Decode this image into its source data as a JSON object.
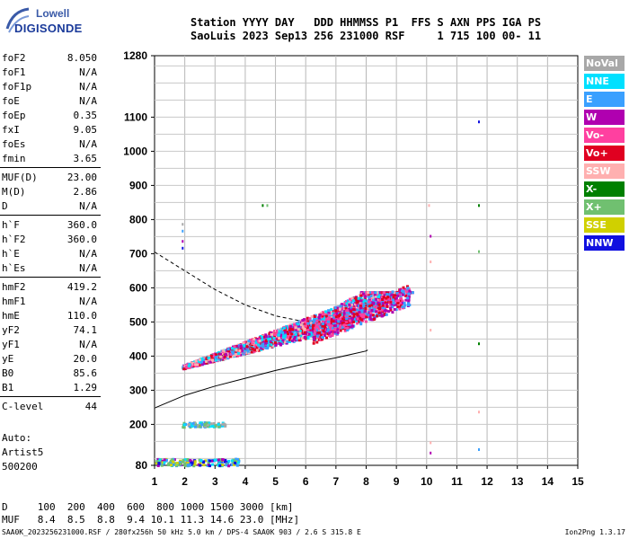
{
  "logo": {
    "brand": "Lowell",
    "product": "DIGISONDE"
  },
  "header": {
    "line1": "Station YYYY DAY   DDD HHMMSS P1  FFS S AXN PPS IGA PS",
    "line2": "SaoLuis 2023 Sep13 256 231000 RSF     1 715 100 00- 11"
  },
  "params": {
    "group1": [
      [
        "foF2",
        "8.050"
      ],
      [
        "foF1",
        "N/A"
      ],
      [
        "foF1p",
        "N/A"
      ],
      [
        "foE",
        "N/A"
      ],
      [
        "foEp",
        "0.35"
      ],
      [
        "fxI",
        "9.05"
      ],
      [
        "foEs",
        "N/A"
      ],
      [
        "fmin",
        "3.65"
      ]
    ],
    "group2": [
      [
        "MUF(D)",
        "23.00"
      ],
      [
        "M(D)",
        "2.86"
      ],
      [
        "D",
        "N/A"
      ]
    ],
    "group3": [
      [
        "h`F",
        "360.0"
      ],
      [
        "h`F2",
        "360.0"
      ],
      [
        "h`E",
        "N/A"
      ],
      [
        "h`Es",
        "N/A"
      ]
    ],
    "group4": [
      [
        "hmF2",
        "419.2"
      ],
      [
        "hmF1",
        "N/A"
      ],
      [
        "hmE",
        "110.0"
      ],
      [
        "yF2",
        "74.1"
      ],
      [
        "yF1",
        "N/A"
      ],
      [
        "yE",
        "20.0"
      ],
      [
        "B0",
        "85.6"
      ],
      [
        "B1",
        "1.29"
      ]
    ],
    "group5": [
      [
        "C-level",
        "44"
      ]
    ]
  },
  "extra": {
    "auto": "Auto:",
    "artist": "Artist5",
    "id": "500200"
  },
  "legend": [
    {
      "label": "NoVal",
      "color": "#a8a8a8"
    },
    {
      "label": "NNE",
      "color": "#00e0ff"
    },
    {
      "label": "E",
      "color": "#3aa0ff"
    },
    {
      "label": "W",
      "color": "#b000b0"
    },
    {
      "label": "Vo-",
      "color": "#ff40a0"
    },
    {
      "label": "Vo+",
      "color": "#e00020"
    },
    {
      "label": "SSW",
      "color": "#ffb0b0"
    },
    {
      "label": "X-",
      "color": "#008000"
    },
    {
      "label": "X+",
      "color": "#70c070"
    },
    {
      "label": "SSE",
      "color": "#d0d000"
    },
    {
      "label": "NNW",
      "color": "#1010e0"
    }
  ],
  "chart_data": {
    "type": "scatter",
    "x_ticks": [
      "1",
      "2",
      "3",
      "4",
      "5",
      "6",
      "7",
      "8",
      "9",
      "10",
      "11",
      "12",
      "13",
      "14",
      "15"
    ],
    "y_ticks": [
      "80",
      "200",
      "300",
      "400",
      "500",
      "600",
      "700",
      "800",
      "900",
      "1000",
      "1100",
      "1280"
    ],
    "xlim": [
      1,
      15
    ],
    "ylim": [
      80,
      1280
    ],
    "grid": true,
    "dashed_curve": [
      [
        1.0,
        705
      ],
      [
        2.0,
        650
      ],
      [
        3.0,
        595
      ],
      [
        4.0,
        550
      ],
      [
        5.0,
        518
      ],
      [
        6.0,
        500
      ],
      [
        6.5,
        490
      ]
    ],
    "solid_curve": [
      [
        1.0,
        248
      ],
      [
        2.0,
        285
      ],
      [
        3.0,
        312
      ],
      [
        4.0,
        335
      ],
      [
        5.0,
        358
      ],
      [
        6.0,
        378
      ],
      [
        7.0,
        395
      ],
      [
        8.0,
        415
      ],
      [
        8.05,
        418
      ]
    ]
  },
  "dmuf": {
    "line1": "D     100  200  400  600  800 1000 1500 3000 [km]",
    "line2": "MUF   8.4  8.5  8.8  9.4 10.1 11.3 14.6 23.0 [MHz]"
  },
  "footer": {
    "left": "SAA0K_2023256231000.RSF / 280fx256h 50 kHz 5.0 km / DPS-4 SAA0K 903 / 2.6 S 315.8 E",
    "right": "Ion2Png 1.3.17"
  }
}
